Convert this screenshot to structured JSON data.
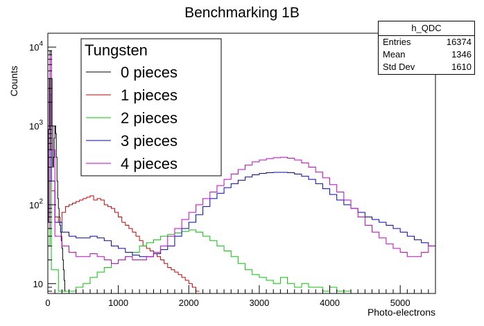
{
  "chart_data": {
    "type": "step-histogram",
    "title": "Benchmarking 1B",
    "xlabel": "Photo-electrons",
    "ylabel": "Counts",
    "xlim": [
      0,
      5500
    ],
    "ylim": [
      7.5,
      15000
    ],
    "yscale": "log",
    "x_ticks": [
      0,
      1000,
      2000,
      3000,
      4000,
      5000
    ],
    "y_tick_labels": [
      {
        "value": 10,
        "base": "10",
        "exp": ""
      },
      {
        "value": 100,
        "base": "10",
        "exp": "2"
      },
      {
        "value": 1000,
        "base": "10",
        "exp": "3"
      },
      {
        "value": 10000,
        "base": "10",
        "exp": "4"
      }
    ],
    "legend": {
      "title": "Tungsten",
      "placement": "top-left",
      "entries": [
        "0 pieces",
        "1 pieces",
        "2 pieces",
        "3 pieces",
        "4 pieces"
      ]
    },
    "stats": {
      "title": "h_QDC",
      "rows": [
        {
          "label": "Entries",
          "value": "16374"
        },
        {
          "label": "Mean",
          "value": "1346"
        },
        {
          "label": "Std Dev",
          "value": "1610"
        }
      ]
    },
    "series": [
      {
        "name": "0 pieces",
        "color": "#000000",
        "points": [
          [
            0,
            60
          ],
          [
            10,
            900
          ],
          [
            20,
            4000
          ],
          [
            30,
            9000
          ],
          [
            40,
            9000
          ],
          [
            50,
            4000
          ],
          [
            60,
            1000
          ],
          [
            70,
            300
          ],
          [
            80,
            400
          ],
          [
            90,
            700
          ],
          [
            100,
            1000
          ],
          [
            110,
            800
          ],
          [
            120,
            400
          ],
          [
            130,
            200
          ],
          [
            140,
            120
          ],
          [
            150,
            90
          ],
          [
            160,
            70
          ],
          [
            170,
            55
          ],
          [
            180,
            45
          ],
          [
            190,
            35
          ],
          [
            200,
            28
          ],
          [
            210,
            20
          ],
          [
            220,
            15
          ],
          [
            230,
            11
          ],
          [
            240,
            8
          ]
        ]
      },
      {
        "name": "1 pieces",
        "color": "#cc0000",
        "points": [
          [
            0,
            30
          ],
          [
            30,
            3500
          ],
          [
            40,
            1500
          ],
          [
            50,
            150
          ],
          [
            100,
            70
          ],
          [
            150,
            60
          ],
          [
            200,
            80
          ],
          [
            250,
            95
          ],
          [
            300,
            100
          ],
          [
            350,
            105
          ],
          [
            400,
            110
          ],
          [
            450,
            115
          ],
          [
            500,
            120
          ],
          [
            550,
            125
          ],
          [
            600,
            130
          ],
          [
            650,
            115
          ],
          [
            700,
            120
          ],
          [
            750,
            115
          ],
          [
            800,
            100
          ],
          [
            850,
            95
          ],
          [
            900,
            90
          ],
          [
            950,
            80
          ],
          [
            1000,
            70
          ],
          [
            1050,
            60
          ],
          [
            1100,
            55
          ],
          [
            1150,
            50
          ],
          [
            1200,
            45
          ],
          [
            1250,
            40
          ],
          [
            1300,
            35
          ],
          [
            1350,
            30
          ],
          [
            1400,
            28
          ],
          [
            1450,
            26
          ],
          [
            1500,
            24
          ],
          [
            1550,
            22
          ],
          [
            1600,
            20
          ],
          [
            1650,
            18
          ],
          [
            1700,
            16
          ],
          [
            1750,
            15
          ],
          [
            1800,
            14
          ],
          [
            1850,
            13
          ],
          [
            1900,
            12
          ],
          [
            1950,
            11
          ],
          [
            2000,
            10
          ],
          [
            2050,
            9
          ],
          [
            2100,
            8
          ]
        ]
      },
      {
        "name": "2 pieces",
        "color": "#00cc00",
        "points": [
          [
            0,
            30
          ],
          [
            30,
            4000
          ],
          [
            40,
            500
          ],
          [
            50,
            15
          ],
          [
            150,
            8
          ],
          [
            300,
            8
          ],
          [
            400,
            9
          ],
          [
            500,
            10
          ],
          [
            600,
            12
          ],
          [
            700,
            14
          ],
          [
            800,
            16
          ],
          [
            900,
            18
          ],
          [
            1000,
            20
          ],
          [
            1100,
            22
          ],
          [
            1200,
            25
          ],
          [
            1300,
            30
          ],
          [
            1400,
            33
          ],
          [
            1500,
            36
          ],
          [
            1600,
            40
          ],
          [
            1700,
            42
          ],
          [
            1800,
            44
          ],
          [
            1900,
            46
          ],
          [
            2000,
            48
          ],
          [
            2100,
            45
          ],
          [
            2200,
            40
          ],
          [
            2300,
            35
          ],
          [
            2400,
            30
          ],
          [
            2500,
            26
          ],
          [
            2600,
            22
          ],
          [
            2700,
            18
          ],
          [
            2800,
            15
          ],
          [
            2900,
            13
          ],
          [
            3000,
            12
          ],
          [
            3100,
            11
          ],
          [
            3200,
            10
          ],
          [
            3300,
            12
          ],
          [
            3400,
            10
          ],
          [
            3500,
            9
          ],
          [
            3600,
            10
          ],
          [
            3700,
            9
          ],
          [
            3800,
            9
          ],
          [
            3900,
            8
          ],
          [
            4000,
            9
          ],
          [
            4100,
            8
          ],
          [
            4200,
            8
          ]
        ]
      },
      {
        "name": "3 pieces",
        "color": "#0000cc",
        "points": [
          [
            0,
            50
          ],
          [
            30,
            2500
          ],
          [
            50,
            200
          ],
          [
            100,
            60
          ],
          [
            200,
            45
          ],
          [
            300,
            40
          ],
          [
            400,
            38
          ],
          [
            500,
            38
          ],
          [
            600,
            40
          ],
          [
            700,
            38
          ],
          [
            800,
            35
          ],
          [
            900,
            30
          ],
          [
            1000,
            28
          ],
          [
            1100,
            25
          ],
          [
            1200,
            23
          ],
          [
            1300,
            22
          ],
          [
            1400,
            22
          ],
          [
            1500,
            24
          ],
          [
            1600,
            27
          ],
          [
            1700,
            30
          ],
          [
            1800,
            40
          ],
          [
            1900,
            50
          ],
          [
            2000,
            60
          ],
          [
            2100,
            75
          ],
          [
            2200,
            95
          ],
          [
            2300,
            120
          ],
          [
            2400,
            140
          ],
          [
            2500,
            165
          ],
          [
            2600,
            185
          ],
          [
            2700,
            205
          ],
          [
            2800,
            225
          ],
          [
            2900,
            240
          ],
          [
            3000,
            250
          ],
          [
            3100,
            255
          ],
          [
            3200,
            258
          ],
          [
            3300,
            258
          ],
          [
            3400,
            255
          ],
          [
            3500,
            245
          ],
          [
            3600,
            230
          ],
          [
            3700,
            210
          ],
          [
            3800,
            185
          ],
          [
            3900,
            160
          ],
          [
            4000,
            135
          ],
          [
            4100,
            115
          ],
          [
            4200,
            100
          ],
          [
            4300,
            90
          ],
          [
            4400,
            80
          ],
          [
            4500,
            70
          ],
          [
            4600,
            65
          ],
          [
            4700,
            60
          ],
          [
            4800,
            55
          ],
          [
            4900,
            50
          ],
          [
            5000,
            45
          ],
          [
            5100,
            40
          ],
          [
            5200,
            36
          ],
          [
            5300,
            33
          ],
          [
            5400,
            30
          ],
          [
            5500,
            28
          ]
        ]
      },
      {
        "name": "4 pieces",
        "color": "#cc00cc",
        "points": [
          [
            0,
            50
          ],
          [
            30,
            8000
          ],
          [
            50,
            500
          ],
          [
            100,
            40
          ],
          [
            200,
            30
          ],
          [
            300,
            25
          ],
          [
            400,
            22
          ],
          [
            500,
            22
          ],
          [
            600,
            24
          ],
          [
            700,
            22
          ],
          [
            800,
            20
          ],
          [
            900,
            18
          ],
          [
            1000,
            20
          ],
          [
            1100,
            22
          ],
          [
            1200,
            20
          ],
          [
            1300,
            20
          ],
          [
            1400,
            22
          ],
          [
            1500,
            25
          ],
          [
            1600,
            30
          ],
          [
            1700,
            40
          ],
          [
            1800,
            50
          ],
          [
            1900,
            65
          ],
          [
            2000,
            80
          ],
          [
            2100,
            100
          ],
          [
            2200,
            120
          ],
          [
            2300,
            145
          ],
          [
            2400,
            175
          ],
          [
            2500,
            210
          ],
          [
            2600,
            245
          ],
          [
            2700,
            280
          ],
          [
            2800,
            320
          ],
          [
            2900,
            350
          ],
          [
            3000,
            370
          ],
          [
            3100,
            385
          ],
          [
            3200,
            395
          ],
          [
            3300,
            400
          ],
          [
            3400,
            390
          ],
          [
            3500,
            370
          ],
          [
            3600,
            340
          ],
          [
            3700,
            300
          ],
          [
            3800,
            260
          ],
          [
            3900,
            220
          ],
          [
            4000,
            180
          ],
          [
            4100,
            145
          ],
          [
            4200,
            115
          ],
          [
            4300,
            90
          ],
          [
            4400,
            70
          ],
          [
            4500,
            55
          ],
          [
            4600,
            45
          ],
          [
            4700,
            38
          ],
          [
            4800,
            32
          ],
          [
            4900,
            28
          ],
          [
            5000,
            25
          ],
          [
            5100,
            22
          ],
          [
            5200,
            22
          ],
          [
            5300,
            25
          ],
          [
            5400,
            30
          ],
          [
            5500,
            40
          ]
        ]
      }
    ]
  }
}
